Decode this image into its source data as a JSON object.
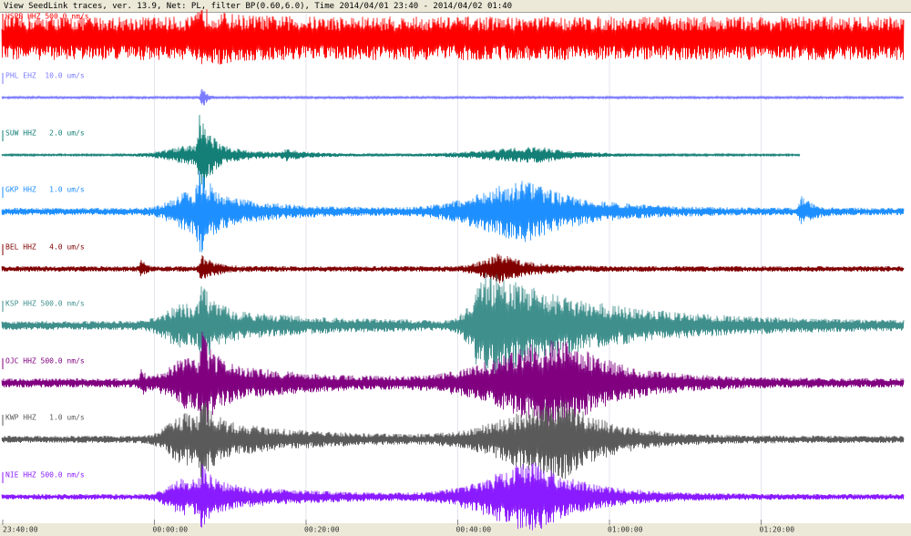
{
  "window": {
    "title": "View SeedLink traces, ver. 13.9, Net: PL, filter BP(0.60,6.0), Time 2014/04/01 23:40 - 2014/04/02 01:40"
  },
  "traces": [
    {
      "label": "HSPB HHZ 500.0 nm/s",
      "color": "#ff0000"
    },
    {
      "label": "PHL EHZ  10.0 um/s",
      "color": "#7b7bff"
    },
    {
      "label": "SUW HHZ   2.0 um/s",
      "color": "#137f76"
    },
    {
      "label": "GKP HHZ   1.0 um/s",
      "color": "#1e8fff"
    },
    {
      "label": "BEL HHZ   4.0 um/s",
      "color": "#800000"
    },
    {
      "label": "KSP HHZ 500.0 nm/s",
      "color": "#3f8f8c"
    },
    {
      "label": "OJC HHZ 500.0 nm/s",
      "color": "#800080"
    },
    {
      "label": "KWP HHZ   1.0 um/s",
      "color": "#5a5a5a"
    },
    {
      "label": "NIE HHZ 500.0 nm/s",
      "color": "#8a1aff"
    }
  ],
  "time_axis": {
    "labels": [
      "23:40:00",
      "00:00:00",
      "00:20:00",
      "00:40:00",
      "01:00:00",
      "01:20:00"
    ]
  }
}
